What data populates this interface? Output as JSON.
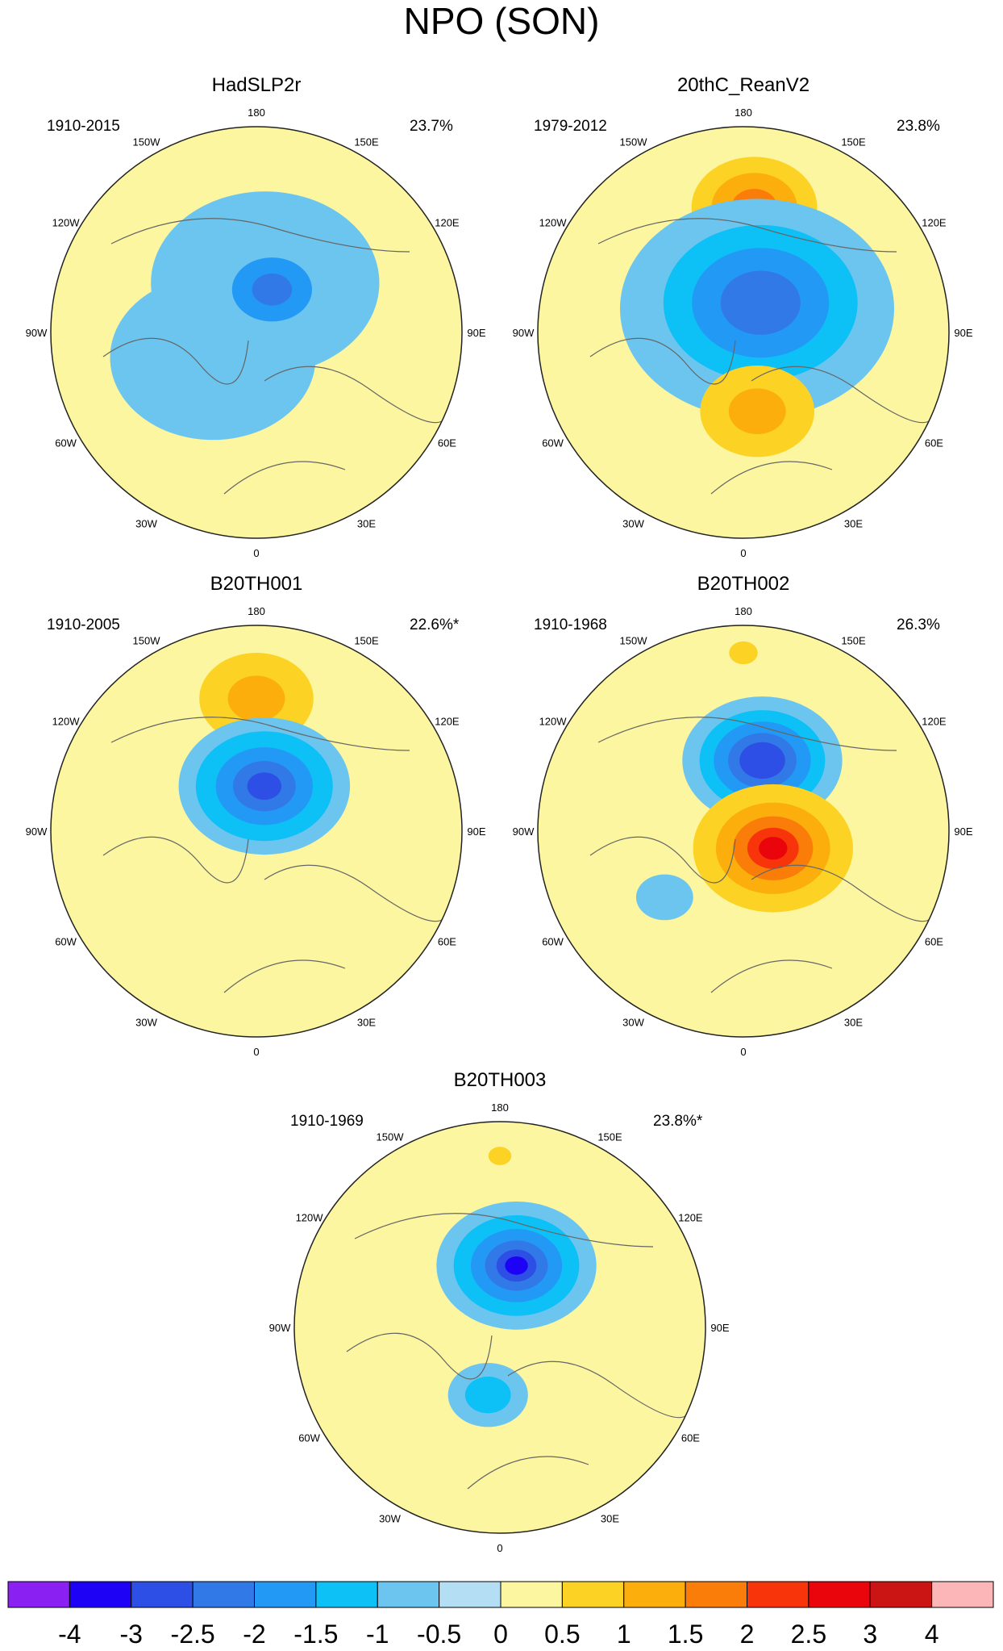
{
  "figure": {
    "title": "NPO (SON)"
  },
  "panels": [
    {
      "id": "hadslp2r",
      "title": "HadSLP2r",
      "years": "1910-2015",
      "variance": "23.7%",
      "features": [
        {
          "value": -1.0,
          "lon": 175,
          "colat": 22,
          "r": 26
        },
        {
          "value": -0.5,
          "lon": 170,
          "colat": 22,
          "r": 40
        },
        {
          "value": -0.5,
          "lon": -60,
          "colat": 22,
          "r": 36
        },
        {
          "value": -1.5,
          "lon": 160,
          "colat": 20,
          "r": 14
        },
        {
          "value": -2.0,
          "lon": 160,
          "colat": 20,
          "r": 7
        }
      ]
    },
    {
      "id": "20thc-reanv2",
      "title": "20thC_ReanV2",
      "years": "1979-2012",
      "variance": "23.8%",
      "features": [
        {
          "value": 0.5,
          "lon": 175,
          "colat": 55,
          "r": 22
        },
        {
          "value": 1.0,
          "lon": 175,
          "colat": 55,
          "r": 15
        },
        {
          "value": 1.5,
          "lon": 175,
          "colat": 55,
          "r": 8
        },
        {
          "value": -0.5,
          "lon": 150,
          "colat": 12,
          "r": 48
        },
        {
          "value": -1.0,
          "lon": 150,
          "colat": 15,
          "r": 34
        },
        {
          "value": -1.5,
          "lon": 150,
          "colat": 15,
          "r": 24
        },
        {
          "value": -2.0,
          "lon": 150,
          "colat": 15,
          "r": 14
        },
        {
          "value": 0.5,
          "lon": 10,
          "colat": 35,
          "r": 20
        },
        {
          "value": 1.0,
          "lon": 10,
          "colat": 35,
          "r": 10
        }
      ]
    },
    {
      "id": "b20th001",
      "title": "B20TH001",
      "years": "1910-2005",
      "variance": "22.6%*",
      "features": [
        {
          "value": 0.5,
          "lon": 180,
          "colat": 58,
          "r": 20
        },
        {
          "value": 1.0,
          "lon": 180,
          "colat": 58,
          "r": 10
        },
        {
          "value": -0.5,
          "lon": 170,
          "colat": 20,
          "r": 30
        },
        {
          "value": -1.0,
          "lon": 170,
          "colat": 20,
          "r": 24
        },
        {
          "value": -1.5,
          "lon": 170,
          "colat": 20,
          "r": 17
        },
        {
          "value": -2.0,
          "lon": 170,
          "colat": 20,
          "r": 11
        },
        {
          "value": -2.5,
          "lon": 170,
          "colat": 20,
          "r": 6
        }
      ]
    },
    {
      "id": "b20th002",
      "title": "B20TH002",
      "years": "1910-1968",
      "variance": "26.3%",
      "features": [
        {
          "value": 0.5,
          "lon": 180,
          "colat": 78,
          "r": 5
        },
        {
          "value": -0.5,
          "lon": 165,
          "colat": 32,
          "r": 28
        },
        {
          "value": -1.0,
          "lon": 165,
          "colat": 32,
          "r": 22
        },
        {
          "value": -1.5,
          "lon": 165,
          "colat": 32,
          "r": 17
        },
        {
          "value": -2.0,
          "lon": 165,
          "colat": 32,
          "r": 12
        },
        {
          "value": -2.5,
          "lon": 165,
          "colat": 32,
          "r": 8
        },
        {
          "value": 0.5,
          "lon": 60,
          "colat": 15,
          "r": 28
        },
        {
          "value": 1.0,
          "lon": 60,
          "colat": 15,
          "r": 20
        },
        {
          "value": 1.5,
          "lon": 60,
          "colat": 15,
          "r": 14
        },
        {
          "value": 2.0,
          "lon": 60,
          "colat": 15,
          "r": 9
        },
        {
          "value": 2.5,
          "lon": 60,
          "colat": 15,
          "r": 5
        },
        {
          "value": -0.5,
          "lon": -50,
          "colat": 45,
          "r": 10
        }
      ]
    },
    {
      "id": "b20th003",
      "title": "B20TH003",
      "years": "1910-1969",
      "variance": "23.8%*",
      "features": [
        {
          "value": 0.5,
          "lon": 180,
          "colat": 75,
          "r": 4
        },
        {
          "value": -0.5,
          "lon": 165,
          "colat": 28,
          "r": 28
        },
        {
          "value": -1.0,
          "lon": 165,
          "colat": 28,
          "r": 22
        },
        {
          "value": -1.5,
          "lon": 165,
          "colat": 28,
          "r": 16
        },
        {
          "value": -2.0,
          "lon": 165,
          "colat": 28,
          "r": 11
        },
        {
          "value": -2.5,
          "lon": 165,
          "colat": 28,
          "r": 7
        },
        {
          "value": -3.0,
          "lon": 165,
          "colat": 28,
          "r": 4
        },
        {
          "value": -0.5,
          "lon": -10,
          "colat": 30,
          "r": 14
        },
        {
          "value": -1.0,
          "lon": -10,
          "colat": 30,
          "r": 8
        }
      ]
    }
  ],
  "map": {
    "projection": "north-polar-stereographic",
    "background_value": 0,
    "lon_labels": [
      "180",
      "150E",
      "120E",
      "90E",
      "60E",
      "30E",
      "0",
      "30W",
      "60W",
      "90W",
      "120W",
      "150W"
    ]
  },
  "colorbar": {
    "labels": [
      "-4",
      "-3",
      "-2.5",
      "-2",
      "-1.5",
      "-1",
      "-0.5",
      "0",
      "0.5",
      "1",
      "1.5",
      "2",
      "2.5",
      "3",
      "4"
    ],
    "colors": [
      "#8A21F2",
      "#1E02F5",
      "#2E4FE6",
      "#3279E8",
      "#2399F6",
      "#0DC0F5",
      "#6CC5EF",
      "#B4DEF3",
      "#FCF6A1",
      "#FCD325",
      "#FBAE0C",
      "#FA7C09",
      "#F8350A",
      "#E9050B",
      "#CB1515",
      "#FCB6B7"
    ]
  }
}
